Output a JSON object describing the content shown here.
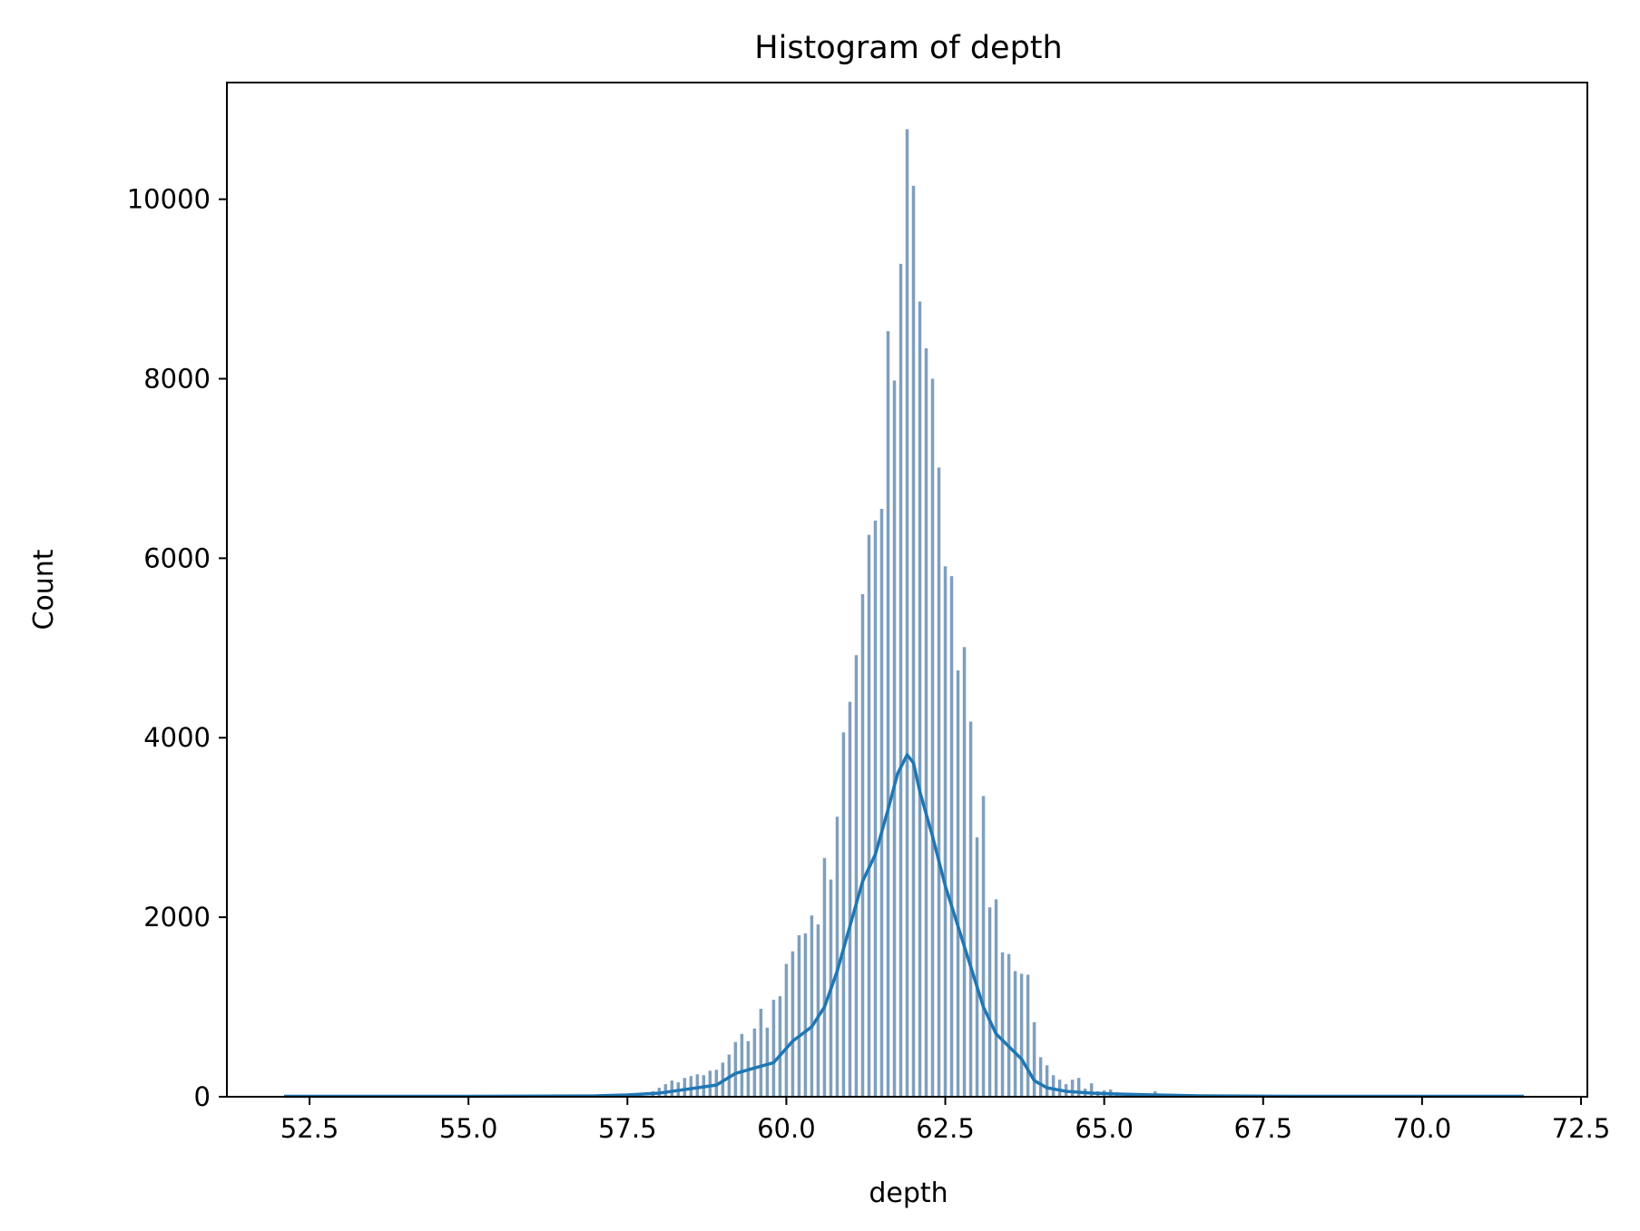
{
  "chart_data": {
    "type": "bar",
    "title": "Histogram of depth",
    "xlabel": "depth",
    "ylabel": "Count",
    "xlim": [
      51.2,
      72.6
    ],
    "ylim": [
      0,
      11300
    ],
    "xticks": [
      52.5,
      55.0,
      57.5,
      60.0,
      62.5,
      65.0,
      67.5,
      70.0,
      72.5
    ],
    "xtick_labels": [
      "52.5",
      "55.0",
      "57.5",
      "60.0",
      "62.5",
      "65.0",
      "67.5",
      "70.0",
      "72.5"
    ],
    "yticks": [
      0,
      2000,
      4000,
      6000,
      8000,
      10000
    ],
    "ytick_labels": [
      "0",
      "2000",
      "4000",
      "6000",
      "8000",
      "10000"
    ],
    "grid": false,
    "bar_color": "#7f9fbd",
    "kde_color": "#1f77b4",
    "bins": [
      {
        "x": 57.9,
        "count": 60
      },
      {
        "x": 58.0,
        "count": 100
      },
      {
        "x": 58.1,
        "count": 140
      },
      {
        "x": 58.2,
        "count": 180
      },
      {
        "x": 58.3,
        "count": 160
      },
      {
        "x": 58.4,
        "count": 210
      },
      {
        "x": 58.5,
        "count": 230
      },
      {
        "x": 58.6,
        "count": 250
      },
      {
        "x": 58.7,
        "count": 240
      },
      {
        "x": 58.8,
        "count": 290
      },
      {
        "x": 58.9,
        "count": 300
      },
      {
        "x": 59.0,
        "count": 380
      },
      {
        "x": 59.1,
        "count": 470
      },
      {
        "x": 59.2,
        "count": 610
      },
      {
        "x": 59.3,
        "count": 700
      },
      {
        "x": 59.4,
        "count": 620
      },
      {
        "x": 59.5,
        "count": 760
      },
      {
        "x": 59.6,
        "count": 980
      },
      {
        "x": 59.7,
        "count": 770
      },
      {
        "x": 59.8,
        "count": 1080
      },
      {
        "x": 59.9,
        "count": 1120
      },
      {
        "x": 60.0,
        "count": 1480
      },
      {
        "x": 60.1,
        "count": 1620
      },
      {
        "x": 60.2,
        "count": 1800
      },
      {
        "x": 60.3,
        "count": 1820
      },
      {
        "x": 60.4,
        "count": 2020
      },
      {
        "x": 60.5,
        "count": 1920
      },
      {
        "x": 60.6,
        "count": 2660
      },
      {
        "x": 60.7,
        "count": 2420
      },
      {
        "x": 60.8,
        "count": 3120
      },
      {
        "x": 60.9,
        "count": 4060
      },
      {
        "x": 61.0,
        "count": 4400
      },
      {
        "x": 61.1,
        "count": 4920
      },
      {
        "x": 61.2,
        "count": 5600
      },
      {
        "x": 61.3,
        "count": 6260
      },
      {
        "x": 61.4,
        "count": 6420
      },
      {
        "x": 61.5,
        "count": 6550
      },
      {
        "x": 61.6,
        "count": 8530
      },
      {
        "x": 61.7,
        "count": 7980
      },
      {
        "x": 61.8,
        "count": 9280
      },
      {
        "x": 61.9,
        "count": 10780
      },
      {
        "x": 62.0,
        "count": 10150
      },
      {
        "x": 62.1,
        "count": 8860
      },
      {
        "x": 62.2,
        "count": 8340
      },
      {
        "x": 62.3,
        "count": 8000
      },
      {
        "x": 62.4,
        "count": 7010
      },
      {
        "x": 62.5,
        "count": 5910
      },
      {
        "x": 62.6,
        "count": 5800
      },
      {
        "x": 62.7,
        "count": 4750
      },
      {
        "x": 62.8,
        "count": 5010
      },
      {
        "x": 62.9,
        "count": 4180
      },
      {
        "x": 63.0,
        "count": 2890
      },
      {
        "x": 63.1,
        "count": 3350
      },
      {
        "x": 63.2,
        "count": 2110
      },
      {
        "x": 63.3,
        "count": 2200
      },
      {
        "x": 63.4,
        "count": 1610
      },
      {
        "x": 63.5,
        "count": 1590
      },
      {
        "x": 63.6,
        "count": 1400
      },
      {
        "x": 63.7,
        "count": 1370
      },
      {
        "x": 63.8,
        "count": 1360
      },
      {
        "x": 63.9,
        "count": 830
      },
      {
        "x": 64.0,
        "count": 440
      },
      {
        "x": 64.1,
        "count": 350
      },
      {
        "x": 64.2,
        "count": 240
      },
      {
        "x": 64.3,
        "count": 190
      },
      {
        "x": 64.4,
        "count": 140
      },
      {
        "x": 64.5,
        "count": 190
      },
      {
        "x": 64.6,
        "count": 210
      },
      {
        "x": 64.7,
        "count": 90
      },
      {
        "x": 64.8,
        "count": 150
      },
      {
        "x": 64.9,
        "count": 60
      },
      {
        "x": 65.0,
        "count": 70
      },
      {
        "x": 65.1,
        "count": 80
      },
      {
        "x": 65.2,
        "count": 50
      },
      {
        "x": 65.4,
        "count": 40
      },
      {
        "x": 65.6,
        "count": 30
      },
      {
        "x": 65.8,
        "count": 60
      }
    ],
    "kde": {
      "x": [
        52.1,
        55.0,
        57.0,
        57.5,
        58.0,
        58.3,
        58.6,
        58.9,
        59.2,
        59.5,
        59.8,
        60.1,
        60.4,
        60.6,
        60.8,
        61.0,
        61.2,
        61.4,
        61.6,
        61.75,
        61.9,
        62.0,
        62.1,
        62.3,
        62.5,
        62.7,
        62.9,
        63.1,
        63.3,
        63.5,
        63.7,
        63.9,
        64.1,
        64.4,
        64.8,
        65.2,
        65.8,
        66.5,
        68.0,
        71.6
      ],
      "y": [
        5,
        5,
        10,
        20,
        40,
        70,
        100,
        130,
        260,
        320,
        380,
        620,
        780,
        1000,
        1400,
        1900,
        2400,
        2700,
        3200,
        3600,
        3810,
        3720,
        3400,
        2900,
        2350,
        1900,
        1450,
        1000,
        700,
        560,
        420,
        180,
        100,
        60,
        40,
        30,
        20,
        10,
        5,
        5
      ]
    }
  }
}
